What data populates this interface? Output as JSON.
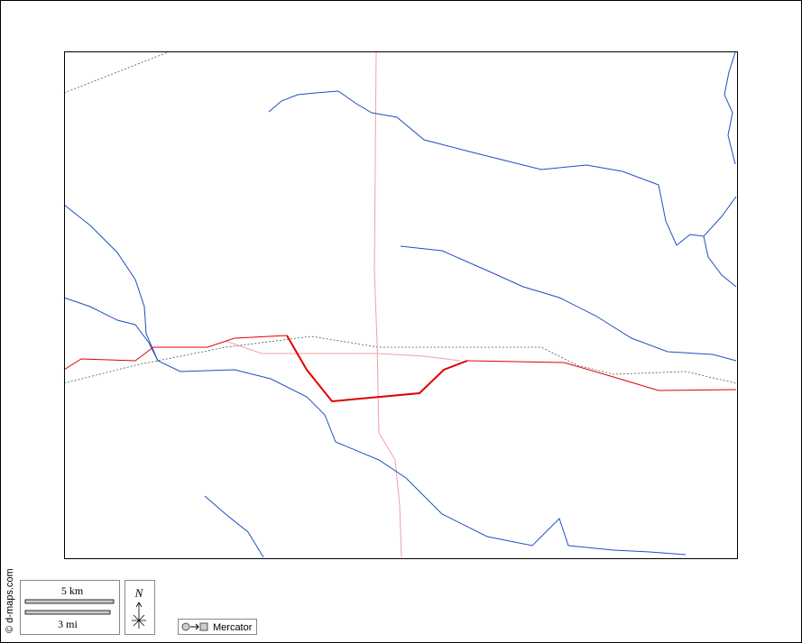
{
  "credit": "© d-maps.com",
  "scale": {
    "km": "5 km",
    "mi": "3 mi"
  },
  "compass": "N",
  "projection": "Mercator"
}
